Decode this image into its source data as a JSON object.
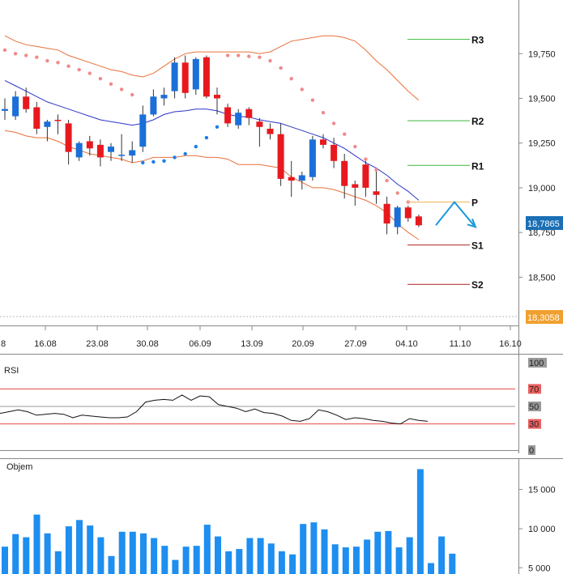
{
  "chart_data": [
    {
      "type": "candlestick",
      "ylim": [
        18230,
        20050
      ],
      "ticks": [
        {
          "v": 19750,
          "label": "19,750"
        },
        {
          "v": 19500,
          "label": "19,500"
        },
        {
          "v": 19250,
          "label": "19,250"
        },
        {
          "v": 19000,
          "label": "19,000"
        },
        {
          "v": 18750,
          "label": "18,750"
        },
        {
          "v": 18500,
          "label": "18,500"
        }
      ],
      "x_ticks": [
        "16.08",
        "23.08",
        "30.08",
        "06.09",
        "13.09",
        "20.09",
        "27.09",
        "04.10",
        "11.10",
        "16.10"
      ],
      "x_tick_edge": "8",
      "current_price": "18,7865",
      "low_marker": "18,3058",
      "candles": [
        {
          "o": 19430,
          "h": 19500,
          "l": 19380,
          "c": 19440
        },
        {
          "o": 19400,
          "h": 19540,
          "l": 19380,
          "c": 19510
        },
        {
          "o": 19510,
          "h": 19560,
          "l": 19420,
          "c": 19440
        },
        {
          "o": 19450,
          "h": 19480,
          "l": 19300,
          "c": 19330
        },
        {
          "o": 19340,
          "h": 19380,
          "l": 19260,
          "c": 19370
        },
        {
          "o": 19380,
          "h": 19410,
          "l": 19300,
          "c": 19375
        },
        {
          "o": 19360,
          "h": 19380,
          "l": 19130,
          "c": 19200
        },
        {
          "o": 19170,
          "h": 19260,
          "l": 19150,
          "c": 19250
        },
        {
          "o": 19260,
          "h": 19290,
          "l": 19180,
          "c": 19220
        },
        {
          "o": 19240,
          "h": 19270,
          "l": 19120,
          "c": 19170
        },
        {
          "o": 19200,
          "h": 19250,
          "l": 19150,
          "c": 19230
        },
        {
          "o": 19180,
          "h": 19300,
          "l": 19150,
          "c": 19185
        },
        {
          "o": 19180,
          "h": 19260,
          "l": 19140,
          "c": 19210
        },
        {
          "o": 19230,
          "h": 19460,
          "l": 19200,
          "c": 19410
        },
        {
          "o": 19410,
          "h": 19550,
          "l": 19400,
          "c": 19510
        },
        {
          "o": 19500,
          "h": 19560,
          "l": 19460,
          "c": 19520
        },
        {
          "o": 19540,
          "h": 19730,
          "l": 19500,
          "c": 19700
        },
        {
          "o": 19700,
          "h": 19740,
          "l": 19500,
          "c": 19530
        },
        {
          "o": 19550,
          "h": 19730,
          "l": 19520,
          "c": 19720
        },
        {
          "o": 19730,
          "h": 19740,
          "l": 19500,
          "c": 19510
        },
        {
          "o": 19520,
          "h": 19560,
          "l": 19410,
          "c": 19500
        },
        {
          "o": 19450,
          "h": 19470,
          "l": 19340,
          "c": 19360
        },
        {
          "o": 19350,
          "h": 19440,
          "l": 19330,
          "c": 19420
        },
        {
          "o": 19440,
          "h": 19450,
          "l": 19350,
          "c": 19390
        },
        {
          "o": 19370,
          "h": 19390,
          "l": 19230,
          "c": 19340
        },
        {
          "o": 19330,
          "h": 19360,
          "l": 19270,
          "c": 19300
        },
        {
          "o": 19300,
          "h": 19360,
          "l": 19010,
          "c": 19050
        },
        {
          "o": 19060,
          "h": 19150,
          "l": 18950,
          "c": 19040
        },
        {
          "o": 19040,
          "h": 19090,
          "l": 18990,
          "c": 19070
        },
        {
          "o": 19060,
          "h": 19290,
          "l": 19040,
          "c": 19270
        },
        {
          "o": 19270,
          "h": 19300,
          "l": 19220,
          "c": 19240
        },
        {
          "o": 19240,
          "h": 19280,
          "l": 19110,
          "c": 19150
        },
        {
          "o": 19150,
          "h": 19190,
          "l": 18940,
          "c": 19010
        },
        {
          "o": 19020,
          "h": 19040,
          "l": 18900,
          "c": 19000
        },
        {
          "o": 19130,
          "h": 19150,
          "l": 18950,
          "c": 19000
        },
        {
          "o": 18980,
          "h": 19090,
          "l": 18910,
          "c": 18960
        },
        {
          "o": 18910,
          "h": 18950,
          "l": 18740,
          "c": 18800
        },
        {
          "o": 18780,
          "h": 18900,
          "l": 18740,
          "c": 18890
        },
        {
          "o": 18890,
          "h": 18900,
          "l": 18810,
          "c": 18830
        },
        {
          "o": 18840,
          "h": 18850,
          "l": 18780,
          "c": 18790
        }
      ],
      "bollinger": {
        "mid": [
          19600,
          19570,
          19540,
          19510,
          19480,
          19460,
          19440,
          19420,
          19400,
          19380,
          19370,
          19360,
          19350,
          19360,
          19380,
          19410,
          19425,
          19430,
          19440,
          19440,
          19430,
          19410,
          19400,
          19395,
          19380,
          19370,
          19360,
          19340,
          19320,
          19300,
          19280,
          19250,
          19220,
          19180,
          19140,
          19110,
          19070,
          19020,
          18980,
          18930
        ],
        "upper": [
          19850,
          19820,
          19800,
          19790,
          19780,
          19770,
          19740,
          19720,
          19700,
          19680,
          19660,
          19650,
          19630,
          19620,
          19640,
          19680,
          19720,
          19750,
          19760,
          19760,
          19760,
          19760,
          19760,
          19760,
          19750,
          19760,
          19790,
          19820,
          19830,
          19840,
          19850,
          19850,
          19840,
          19820,
          19770,
          19710,
          19660,
          19600,
          19540,
          19490
        ],
        "lower": [
          19320,
          19310,
          19290,
          19280,
          19280,
          19260,
          19230,
          19210,
          19190,
          19180,
          19170,
          19160,
          19140,
          19150,
          19170,
          19170,
          19170,
          19180,
          19180,
          19170,
          19170,
          19160,
          19130,
          19130,
          19130,
          19120,
          19110,
          19060,
          19030,
          19000,
          19000,
          18990,
          18970,
          18950,
          18930,
          18900,
          18860,
          18800,
          18750,
          18710
        ]
      },
      "sar": [
        {
          "i": 0,
          "v": 19770
        },
        {
          "i": 1,
          "v": 19750
        },
        {
          "i": 2,
          "v": 19740
        },
        {
          "i": 3,
          "v": 19730
        },
        {
          "i": 4,
          "v": 19710
        },
        {
          "i": 5,
          "v": 19700
        },
        {
          "i": 6,
          "v": 19680
        },
        {
          "i": 7,
          "v": 19660
        },
        {
          "i": 8,
          "v": 19640
        },
        {
          "i": 9,
          "v": 19610
        },
        {
          "i": 10,
          "v": 19580
        },
        {
          "i": 11,
          "v": 19550
        },
        {
          "i": 12,
          "v": 19520
        },
        {
          "i": 13,
          "v": 19140
        },
        {
          "i": 14,
          "v": 19145
        },
        {
          "i": 15,
          "v": 19150
        },
        {
          "i": 16,
          "v": 19170
        },
        {
          "i": 17,
          "v": 19190
        },
        {
          "i": 18,
          "v": 19230
        },
        {
          "i": 19,
          "v": 19280
        },
        {
          "i": 20,
          "v": 19340
        },
        {
          "i": 21,
          "v": 19740
        },
        {
          "i": 22,
          "v": 19740
        },
        {
          "i": 23,
          "v": 19735
        },
        {
          "i": 24,
          "v": 19730
        },
        {
          "i": 25,
          "v": 19710
        },
        {
          "i": 26,
          "v": 19670
        },
        {
          "i": 27,
          "v": 19610
        },
        {
          "i": 28,
          "v": 19550
        },
        {
          "i": 29,
          "v": 19490
        },
        {
          "i": 30,
          "v": 19420
        },
        {
          "i": 31,
          "v": 19360
        },
        {
          "i": 32,
          "v": 19300
        },
        {
          "i": 33,
          "v": 19230
        },
        {
          "i": 34,
          "v": 19160
        },
        {
          "i": 35,
          "v": 19100
        },
        {
          "i": 36,
          "v": 19040
        },
        {
          "i": 37,
          "v": 18970
        },
        {
          "i": 38,
          "v": 18920
        }
      ],
      "pivots": [
        {
          "label": "R3",
          "v": 19830,
          "color": "#3cb83c"
        },
        {
          "label": "R2",
          "v": 19375,
          "color": "#3cb83c"
        },
        {
          "label": "R1",
          "v": 19125,
          "color": "#3cb83c"
        },
        {
          "label": "P",
          "v": 18920,
          "color": "#f0b050"
        },
        {
          "label": "S1",
          "v": 18680,
          "color": "#b22222"
        },
        {
          "label": "S2",
          "v": 18460,
          "color": "#b22222"
        }
      ],
      "forecast": [
        18790,
        18920,
        18790
      ]
    },
    {
      "type": "line",
      "title": "RSI",
      "ylim": [
        0,
        100
      ],
      "ticks": [
        {
          "v": 100,
          "label": "100",
          "bg": "#999999",
          "fg": "#222222"
        },
        {
          "v": 70,
          "label": "70",
          "bg": "#e95f5f",
          "fg": "#222222"
        },
        {
          "v": 50,
          "label": "50",
          "bg": "#999999",
          "fg": "#ffffff"
        },
        {
          "v": 30,
          "label": "30",
          "bg": "#e95f5f",
          "fg": "#222222"
        },
        {
          "v": 0,
          "label": "0",
          "bg": "#999999",
          "fg": "#ffffff"
        }
      ],
      "levels": [
        70,
        50,
        30
      ],
      "values": [
        42,
        44,
        46,
        44,
        40,
        41,
        42,
        41,
        37,
        40,
        39,
        38,
        37,
        37,
        38,
        44,
        55,
        57,
        58,
        57,
        63,
        57,
        62,
        61,
        52,
        50,
        48,
        44,
        47,
        43,
        42,
        39,
        34,
        33,
        36,
        46,
        44,
        40,
        35,
        37,
        36,
        34,
        33,
        31,
        30,
        36,
        34,
        33
      ]
    },
    {
      "type": "bar",
      "title": "Objem",
      "ylim": [
        4200,
        19000
      ],
      "ticks": [
        {
          "v": 15000,
          "label": "15 000"
        },
        {
          "v": 10000,
          "label": "10 000"
        },
        {
          "v": 5000,
          "label": "5 000"
        }
      ],
      "values": [
        7700,
        9300,
        8900,
        11800,
        9400,
        7100,
        10300,
        11100,
        10400,
        8900,
        6500,
        9600,
        9600,
        9400,
        8800,
        7800,
        6000,
        7700,
        7800,
        10500,
        9000,
        7100,
        7400,
        8800,
        8800,
        8100,
        7100,
        6700,
        10600,
        10800,
        9900,
        8000,
        7600,
        7700,
        8600,
        9600,
        9700,
        7600,
        8900,
        17600,
        5600,
        9000,
        6800
      ]
    }
  ]
}
